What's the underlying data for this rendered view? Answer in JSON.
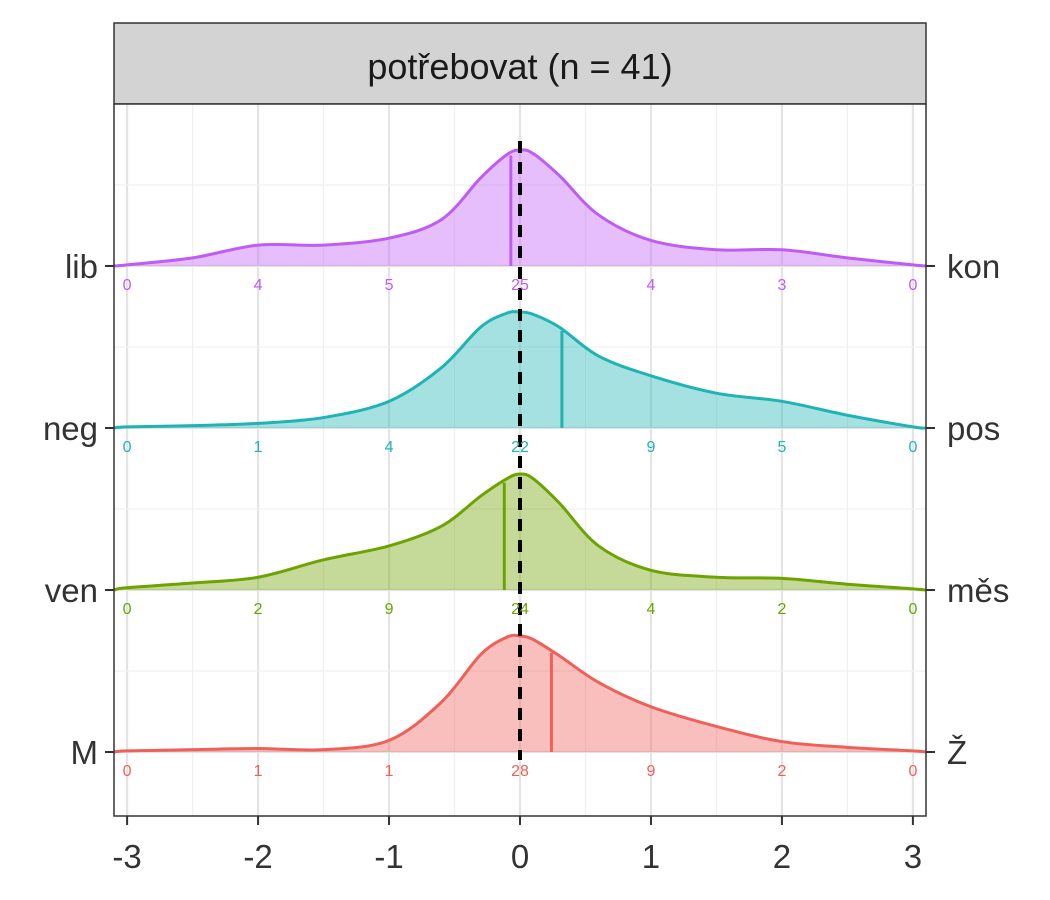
{
  "chart_data": {
    "type": "area",
    "title": "potřebovat (n = 41)",
    "xlabel": "",
    "ylabel": "",
    "xlim": [
      -3.1,
      3.1
    ],
    "x_ticks": [
      -3,
      -2,
      -1,
      0,
      1,
      2,
      3
    ],
    "x_tick_labels": [
      "-3",
      "-2",
      "-1",
      "0",
      "1",
      "2",
      "3"
    ],
    "count_positions": [
      -3,
      -2,
      -1,
      0,
      1,
      2,
      3
    ],
    "reference_line_x": 0,
    "grid": true,
    "legend": "none",
    "series": [
      {
        "left_label": "lib",
        "right_label": "kon",
        "color": "#BE5CF4",
        "counts": [
          "0",
          "4",
          "5",
          "25",
          "4",
          "3",
          "0"
        ],
        "mean": -0.07,
        "density_x": [
          -3.1,
          -3.0,
          -2.5,
          -2.0,
          -1.5,
          -1.0,
          -0.6,
          -0.3,
          -0.1,
          0.0,
          0.1,
          0.3,
          0.6,
          1.0,
          1.5,
          2.0,
          2.5,
          3.0,
          3.1
        ],
        "density_y": [
          0.0,
          0.01,
          0.07,
          0.18,
          0.18,
          0.24,
          0.4,
          0.76,
          0.96,
          1.0,
          0.97,
          0.78,
          0.44,
          0.22,
          0.14,
          0.14,
          0.07,
          0.01,
          0.0
        ]
      },
      {
        "left_label": "neg",
        "right_label": "pos",
        "color": "#1FB3B4",
        "counts": [
          "0",
          "1",
          "4",
          "22",
          "9",
          "5",
          "0"
        ],
        "mean": 0.32,
        "density_x": [
          -3.1,
          -3.0,
          -2.5,
          -2.0,
          -1.5,
          -1.0,
          -0.6,
          -0.3,
          -0.1,
          0.0,
          0.1,
          0.3,
          0.6,
          1.0,
          1.5,
          2.0,
          2.5,
          3.0,
          3.1
        ],
        "density_y": [
          0.0,
          0.01,
          0.02,
          0.04,
          0.09,
          0.23,
          0.52,
          0.87,
          0.99,
          1.0,
          0.98,
          0.87,
          0.62,
          0.45,
          0.3,
          0.23,
          0.11,
          0.01,
          0.0
        ]
      },
      {
        "left_label": "ven",
        "right_label": "měs",
        "color": "#6DA300",
        "counts": [
          "0",
          "2",
          "9",
          "24",
          "4",
          "2",
          "0"
        ],
        "mean": -0.12,
        "density_x": [
          -3.1,
          -3.0,
          -2.5,
          -2.0,
          -1.5,
          -1.0,
          -0.6,
          -0.3,
          -0.1,
          0.0,
          0.1,
          0.3,
          0.6,
          1.0,
          1.5,
          2.0,
          2.5,
          3.0,
          3.1
        ],
        "density_y": [
          0.0,
          0.02,
          0.06,
          0.11,
          0.26,
          0.38,
          0.55,
          0.81,
          0.96,
          1.0,
          0.96,
          0.75,
          0.38,
          0.17,
          0.11,
          0.1,
          0.05,
          0.01,
          0.0
        ]
      },
      {
        "left_label": "M",
        "right_label": "Ž",
        "color": "#F0605A",
        "counts": [
          "0",
          "1",
          "1",
          "28",
          "9",
          "2",
          "0"
        ],
        "mean": 0.24,
        "density_x": [
          -3.1,
          -3.0,
          -2.5,
          -2.0,
          -1.5,
          -1.0,
          -0.6,
          -0.3,
          -0.1,
          0.0,
          0.1,
          0.3,
          0.6,
          1.0,
          1.5,
          2.0,
          2.5,
          3.0,
          3.1
        ],
        "density_y": [
          0.0,
          0.01,
          0.02,
          0.03,
          0.02,
          0.1,
          0.43,
          0.84,
          0.99,
          1.0,
          0.97,
          0.83,
          0.6,
          0.39,
          0.22,
          0.09,
          0.04,
          0.01,
          0.0
        ]
      }
    ]
  }
}
